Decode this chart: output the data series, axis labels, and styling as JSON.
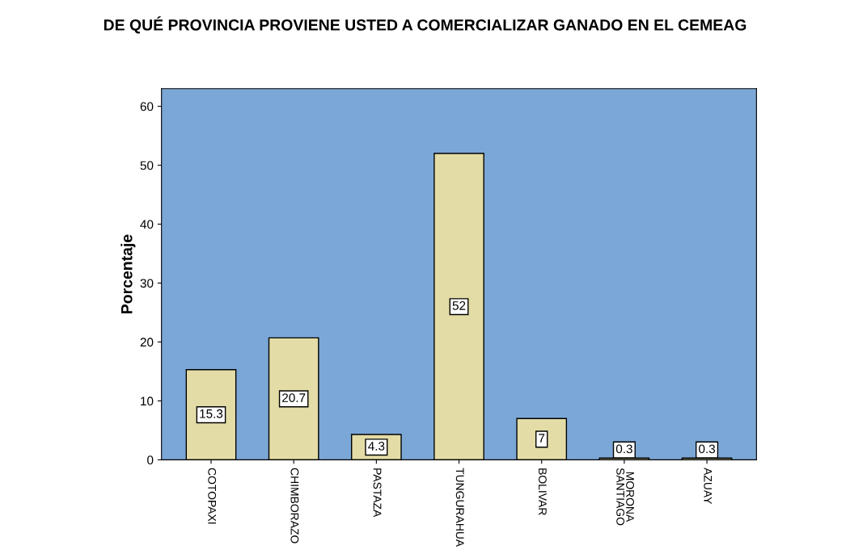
{
  "chart_data": {
    "type": "bar",
    "title": "DE QUÉ PROVINCIA PROVIENE USTED A COMERCIALIZAR GANADO EN EL CEMEAG",
    "ylabel": "Porcentaje",
    "categories": [
      "COTOPAXI",
      "CHIMBORAZO",
      "PASTAZA",
      "TUNGURAHUA",
      "BOLIVAR",
      "MORONA\nSANTIAGO",
      "AZUAY"
    ],
    "values": [
      15.3,
      20.7,
      4.3,
      52,
      7,
      0.3,
      0.3
    ],
    "color": "#e3dca6",
    "ylim": [
      0,
      63
    ],
    "yticks": [
      0,
      10,
      20,
      30,
      40,
      50,
      60
    ],
    "grid": false,
    "data_labels": true
  }
}
